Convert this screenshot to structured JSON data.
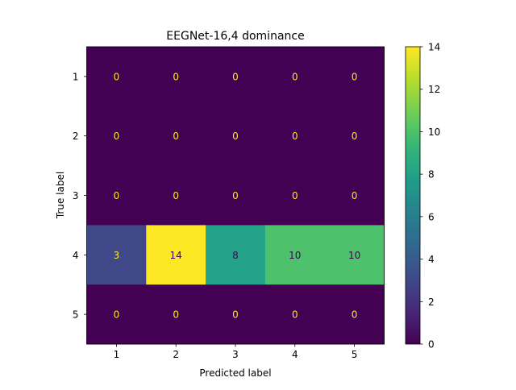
{
  "chart_data": {
    "type": "heatmap",
    "title": "EEGNet-16,4 dominance",
    "xlabel": "Predicted label",
    "ylabel": "True label",
    "x_categories": [
      "1",
      "2",
      "3",
      "4",
      "5"
    ],
    "y_categories": [
      "1",
      "2",
      "3",
      "4",
      "5"
    ],
    "values": [
      [
        0,
        0,
        0,
        0,
        0
      ],
      [
        0,
        0,
        0,
        0,
        0
      ],
      [
        0,
        0,
        0,
        0,
        0
      ],
      [
        3,
        14,
        8,
        10,
        10
      ],
      [
        0,
        0,
        0,
        0,
        0
      ]
    ],
    "colorbar": {
      "colormap": "viridis",
      "range": [
        0,
        14
      ],
      "ticks": [
        0,
        2,
        4,
        6,
        8,
        10,
        12,
        14
      ]
    },
    "grid": false
  }
}
